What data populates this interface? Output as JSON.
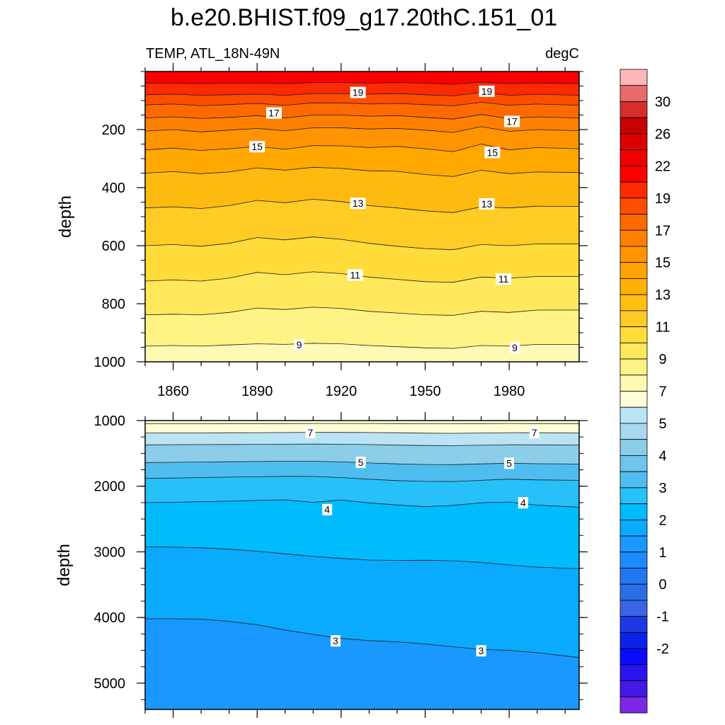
{
  "title": "b.e20.BHIST.f09_g17.20thC.151_01",
  "subtitle_left": "TEMP, ATL_18N-49N",
  "subtitle_right": "degC",
  "chart_data": [
    {
      "type": "heatmap",
      "name": "upper ocean depth-time temperature contours",
      "xlabel": "",
      "ylabel": "depth",
      "xlim": [
        1850,
        2005
      ],
      "ylim": [
        1000,
        0
      ],
      "xticks": [
        1860,
        1890,
        1920,
        1950,
        1980
      ],
      "xtick_labels": [
        "1860",
        "1890",
        "1920",
        "1950",
        "1980"
      ],
      "yticks": [
        200,
        400,
        600,
        800,
        1000
      ],
      "ytick_labels": [
        "200",
        "400",
        "600",
        "800",
        "1000"
      ],
      "x_samples": [
        1850,
        1860,
        1870,
        1880,
        1890,
        1900,
        1910,
        1920,
        1930,
        1940,
        1950,
        1960,
        1970,
        1980,
        1990,
        2005
      ],
      "contours": [
        {
          "level": 20,
          "depth": [
            40,
            40,
            42,
            40,
            40,
            42,
            38,
            38,
            40,
            38,
            40,
            44,
            36,
            42,
            40,
            42
          ]
        },
        {
          "level": 19,
          "depth": [
            80,
            78,
            82,
            80,
            78,
            82,
            76,
            76,
            78,
            76,
            80,
            84,
            72,
            82,
            78,
            82
          ]
        },
        {
          "level": 18,
          "depth": [
            115,
            112,
            118,
            114,
            110,
            116,
            108,
            108,
            112,
            110,
            114,
            118,
            106,
            116,
            112,
            116
          ]
        },
        {
          "level": 17,
          "depth": [
            160,
            156,
            162,
            158,
            152,
            160,
            150,
            150,
            154,
            152,
            158,
            164,
            148,
            162,
            156,
            160
          ]
        },
        {
          "level": 16,
          "depth": [
            205,
            200,
            208,
            202,
            196,
            204,
            194,
            194,
            198,
            196,
            202,
            210,
            190,
            206,
            200,
            204
          ]
        },
        {
          "level": 15,
          "depth": [
            270,
            264,
            272,
            266,
            258,
            268,
            255,
            256,
            262,
            258,
            266,
            276,
            250,
            270,
            262,
            266
          ]
        },
        {
          "level": 14,
          "depth": [
            350,
            345,
            352,
            346,
            332,
            340,
            330,
            334,
            342,
            344,
            355,
            362,
            340,
            352,
            346,
            348
          ]
        },
        {
          "level": 13,
          "depth": [
            470,
            466,
            472,
            462,
            444,
            452,
            440,
            448,
            462,
            470,
            480,
            486,
            466,
            470,
            464,
            465
          ]
        },
        {
          "level": 12,
          "depth": [
            600,
            596,
            602,
            592,
            572,
            580,
            570,
            578,
            592,
            602,
            610,
            614,
            596,
            600,
            594,
            594
          ]
        },
        {
          "level": 11,
          "depth": [
            722,
            718,
            722,
            712,
            692,
            700,
            690,
            696,
            708,
            716,
            724,
            726,
            708,
            712,
            706,
            706
          ]
        },
        {
          "level": 10,
          "depth": [
            838,
            836,
            838,
            830,
            815,
            820,
            812,
            816,
            826,
            832,
            838,
            840,
            826,
            830,
            822,
            822
          ]
        },
        {
          "level": 9,
          "depth": [
            946,
            944,
            946,
            942,
            938,
            940,
            936,
            938,
            944,
            948,
            952,
            954,
            944,
            946,
            940,
            940
          ]
        }
      ],
      "contour_labels": [
        {
          "text": "19",
          "x": 1926,
          "depth": 72
        },
        {
          "text": "19",
          "x": 1972,
          "depth": 68
        },
        {
          "text": "17",
          "x": 1896,
          "depth": 143
        },
        {
          "text": "17",
          "x": 1981,
          "depth": 172
        },
        {
          "text": "15",
          "x": 1890,
          "depth": 259
        },
        {
          "text": "15",
          "x": 1974,
          "depth": 279
        },
        {
          "text": "13",
          "x": 1926,
          "depth": 454
        },
        {
          "text": "13",
          "x": 1972,
          "depth": 456
        },
        {
          "text": "11",
          "x": 1925,
          "depth": 701
        },
        {
          "text": "11",
          "x": 1978,
          "depth": 715
        },
        {
          "text": "9",
          "x": 1905,
          "depth": 941
        },
        {
          "text": "9",
          "x": 1982,
          "depth": 951
        }
      ]
    },
    {
      "type": "heatmap",
      "name": "deep ocean depth-time temperature contours",
      "xlabel": "",
      "ylabel": "depth",
      "xlim": [
        1850,
        2005
      ],
      "ylim": [
        5400,
        1000
      ],
      "yticks": [
        1000,
        2000,
        3000,
        4000,
        5000
      ],
      "ytick_labels": [
        "1000",
        "2000",
        "3000",
        "4000",
        "5000"
      ],
      "x_samples": [
        1850,
        1860,
        1870,
        1880,
        1890,
        1900,
        1910,
        1920,
        1930,
        1940,
        1950,
        1960,
        1970,
        1980,
        1990,
        2005
      ],
      "contours": [
        {
          "level": 8,
          "depth": [
            1050,
            1048,
            1048,
            1046,
            1046,
            1046,
            1044,
            1044,
            1044,
            1046,
            1048,
            1048,
            1046,
            1044,
            1046,
            1046
          ]
        },
        {
          "level": 7,
          "depth": [
            1190,
            1188,
            1188,
            1186,
            1184,
            1182,
            1180,
            1180,
            1182,
            1186,
            1192,
            1194,
            1190,
            1184,
            1186,
            1188
          ]
        },
        {
          "level": 6,
          "depth": [
            1370,
            1368,
            1366,
            1364,
            1362,
            1360,
            1358,
            1360,
            1366,
            1374,
            1380,
            1382,
            1376,
            1368,
            1370,
            1372
          ]
        },
        {
          "level": 5,
          "depth": [
            1640,
            1636,
            1632,
            1628,
            1624,
            1620,
            1620,
            1630,
            1646,
            1660,
            1670,
            1672,
            1660,
            1650,
            1658,
            1662
          ]
        },
        {
          "level": 4.5,
          "depth": [
            1880,
            1876,
            1868,
            1862,
            1856,
            1850,
            1852,
            1868,
            1894,
            1914,
            1926,
            1928,
            1910,
            1892,
            1904,
            1910
          ]
        },
        {
          "level": 4,
          "depth": [
            2250,
            2246,
            2236,
            2228,
            2216,
            2208,
            2246,
            2210,
            2254,
            2286,
            2312,
            2292,
            2252,
            2240,
            2288,
            2320
          ]
        },
        {
          "level": 3.5,
          "depth": [
            2925,
            2928,
            2938,
            2960,
            2990,
            3030,
            3070,
            3100,
            3124,
            3130,
            3128,
            3136,
            3160,
            3200,
            3232,
            3258
          ]
        },
        {
          "level": 3,
          "depth": [
            4020,
            4020,
            4024,
            4060,
            4110,
            4190,
            4258,
            4318,
            4352,
            4370,
            4404,
            4446,
            4484,
            4502,
            4536,
            4610
          ]
        }
      ],
      "contour_labels": [
        {
          "text": "7",
          "x": 1909,
          "depth": 1181
        },
        {
          "text": "7",
          "x": 1989,
          "depth": 1185
        },
        {
          "text": "5",
          "x": 1927,
          "depth": 1637
        },
        {
          "text": "5",
          "x": 1980,
          "depth": 1651
        },
        {
          "text": "4",
          "x": 1915,
          "depth": 2356
        },
        {
          "text": "4",
          "x": 1985,
          "depth": 2252
        },
        {
          "text": "3",
          "x": 1918,
          "depth": 4356
        },
        {
          "text": "3",
          "x": 1970,
          "depth": 4507
        }
      ]
    },
    {
      "type": "colorbar",
      "name": "temperature colorbar (degC)",
      "tick_labels": [
        "30",
        "26",
        "22",
        "19",
        "17",
        "15",
        "13",
        "11",
        "9",
        "7",
        "5",
        "4",
        "3",
        "2",
        "1",
        "0",
        "-1",
        "-2"
      ],
      "colors_top_to_bottom": [
        "#fdb7b7",
        "#e96a6a",
        "#d72d2d",
        "#c80000",
        "#dc0000",
        "#f00000",
        "#ff0000",
        "#ff2a00",
        "#ff4d00",
        "#ff6a00",
        "#ff8000",
        "#ff9400",
        "#ffa400",
        "#ffb000",
        "#ffbe10",
        "#ffcc25",
        "#ffdc3a",
        "#ffe85c",
        "#fff385",
        "#fffab3",
        "#fffed6",
        "#bae4f4",
        "#a6d8ee",
        "#8ccde9",
        "#6ec4ec",
        "#4fbeef",
        "#28c0f8",
        "#00bcff",
        "#0aaaff",
        "#1998ff",
        "#1e8aff",
        "#2178f0",
        "#2a6ee8",
        "#3a65e4",
        "#1b3ae6",
        "#0d22ea",
        "#0a0aff",
        "#2a14ee",
        "#4418e6",
        "#7a28e6"
      ]
    }
  ]
}
